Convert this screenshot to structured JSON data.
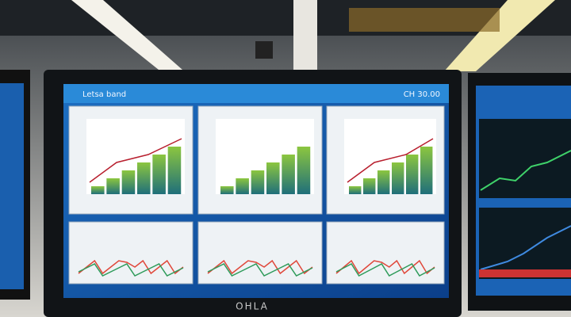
{
  "monitor": {
    "header_left": "Letsa band",
    "header_right": "CH 30.00",
    "brand": "OHLA"
  }
}
